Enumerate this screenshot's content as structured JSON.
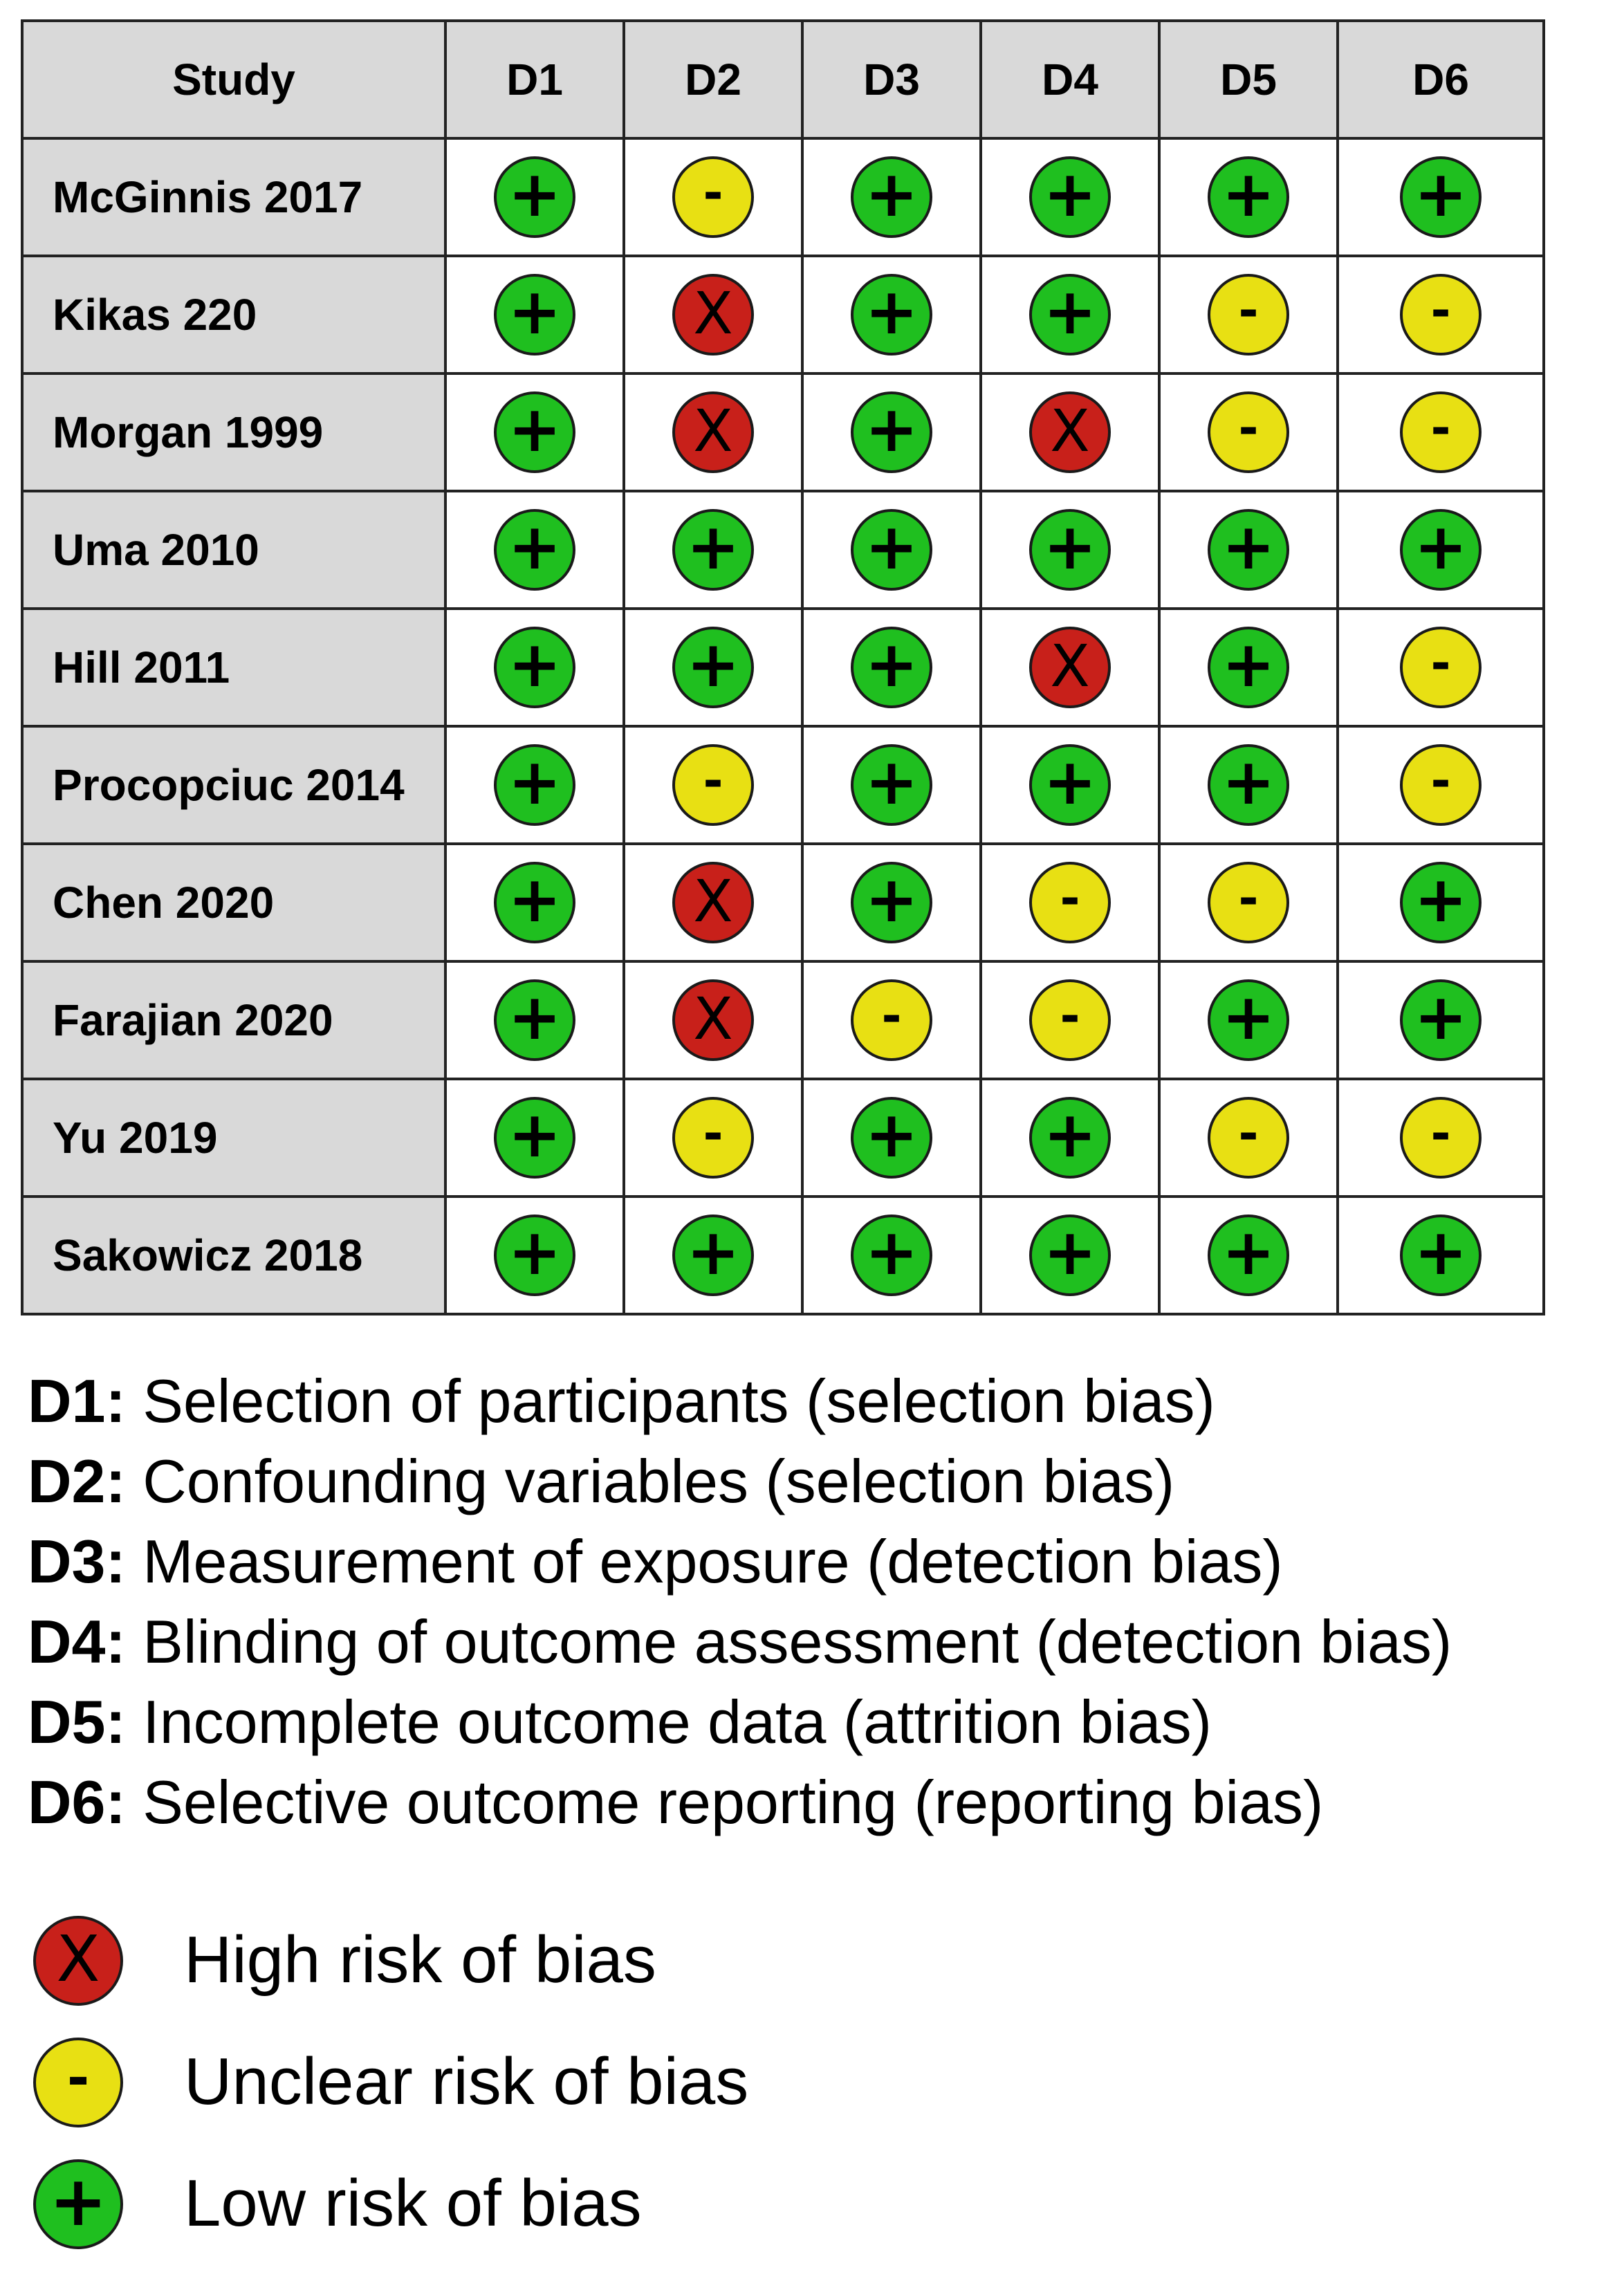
{
  "table": {
    "header": {
      "study": "Study",
      "domains": [
        "D1",
        "D2",
        "D3",
        "D4",
        "D5",
        "D6"
      ]
    },
    "rows": [
      {
        "study": "McGinnis 2017",
        "ratings": [
          "low",
          "unclear",
          "low",
          "low",
          "low",
          "low"
        ]
      },
      {
        "study": "Kikas 220",
        "ratings": [
          "low",
          "high",
          "low",
          "low",
          "unclear",
          "unclear"
        ]
      },
      {
        "study": "Morgan 1999",
        "ratings": [
          "low",
          "high",
          "low",
          "high",
          "unclear",
          "unclear"
        ]
      },
      {
        "study": "Uma 2010",
        "ratings": [
          "low",
          "low",
          "low",
          "low",
          "low",
          "low"
        ]
      },
      {
        "study": "Hill 2011",
        "ratings": [
          "low",
          "low",
          "low",
          "high",
          "low",
          "unclear"
        ]
      },
      {
        "study": "Procopciuc 2014",
        "ratings": [
          "low",
          "unclear",
          "low",
          "low",
          "low",
          "unclear"
        ]
      },
      {
        "study": "Chen 2020",
        "ratings": [
          "low",
          "high",
          "low",
          "unclear",
          "unclear",
          "low"
        ]
      },
      {
        "study": "Farajian 2020",
        "ratings": [
          "low",
          "high",
          "unclear",
          "unclear",
          "low",
          "low"
        ]
      },
      {
        "study": "Yu 2019",
        "ratings": [
          "low",
          "unclear",
          "low",
          "low",
          "unclear",
          "unclear"
        ]
      },
      {
        "study": "Sakowicz 2018",
        "ratings": [
          "low",
          "low",
          "low",
          "low",
          "low",
          "low"
        ]
      }
    ]
  },
  "definitions": [
    {
      "code": "D1:",
      "text": " Selection of participants (selection bias)"
    },
    {
      "code": "D2:",
      "text": " Confounding variables (selection bias)"
    },
    {
      "code": "D3:",
      "text": " Measurement of exposure (detection bias)"
    },
    {
      "code": "D4:",
      "text": " Blinding of outcome assessment (detection bias)"
    },
    {
      "code": "D5:",
      "text": " Incomplete outcome data (attrition bias)"
    },
    {
      "code": "D6:",
      "text": " Selective outcome reporting (reporting bias)"
    }
  ],
  "legend": [
    {
      "key": "high",
      "label": "High risk of bias"
    },
    {
      "key": "unclear",
      "label": "Unclear risk of bias"
    },
    {
      "key": "low",
      "label": "Low risk of bias"
    }
  ],
  "symbols": {
    "high": {
      "glyph": "X",
      "color": "#c8201a",
      "icon": "high-risk-x-icon"
    },
    "unclear": {
      "glyph": "-",
      "color": "#e8e013",
      "icon": "unclear-risk-minus-icon"
    },
    "low": {
      "glyph": "+",
      "color": "#1fbf1f",
      "icon": "low-risk-plus-icon"
    }
  }
}
